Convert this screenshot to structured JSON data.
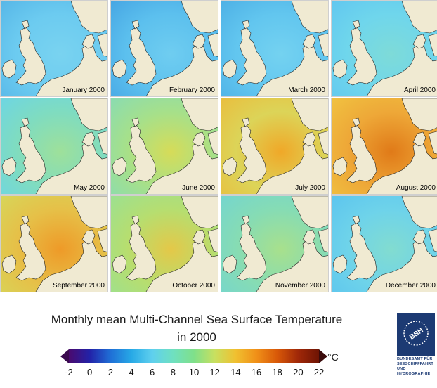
{
  "title_line1": "Monthly mean Multi-Channel Sea Surface Temperature",
  "title_line2": "in 2000",
  "unit": "°C",
  "colorbar": {
    "ticks": [
      "-2",
      "0",
      "2",
      "4",
      "6",
      "8",
      "10",
      "12",
      "14",
      "16",
      "18",
      "20",
      "22"
    ],
    "colors": [
      "#4a0a6e",
      "#2222a8",
      "#1f6fd6",
      "#27a9e6",
      "#5fd0ee",
      "#6fe0c0",
      "#7fe08a",
      "#c8e060",
      "#f0c030",
      "#f09018",
      "#d85808",
      "#a02808",
      "#6e1404"
    ]
  },
  "logo": {
    "text": "BUNDESAMT FÜR SEESCHIFFFAHRT UND HYDROGRAPHIE",
    "mark": "BSH"
  },
  "panels": [
    {
      "month": "January 2000",
      "sea": [
        "#6ccbf0",
        "#79d3f0",
        "#58b8e8"
      ]
    },
    {
      "month": "February 2000",
      "sea": [
        "#5cc0ee",
        "#6fcdf0",
        "#48a8e4"
      ]
    },
    {
      "month": "March 2000",
      "sea": [
        "#62c6ef",
        "#74d2f0",
        "#4fb2e6"
      ]
    },
    {
      "month": "April 2000",
      "sea": [
        "#6fd6ec",
        "#7edbd8",
        "#62c8ef"
      ]
    },
    {
      "month": "May 2000",
      "sea": [
        "#7fdcc0",
        "#9ee09a",
        "#6fd6e0"
      ]
    },
    {
      "month": "June 2000",
      "sea": [
        "#a6e08a",
        "#d6dc58",
        "#8cdcae"
      ]
    },
    {
      "month": "July 2000",
      "sea": [
        "#dcd458",
        "#f0a828",
        "#e8c040"
      ]
    },
    {
      "month": "August 2000",
      "sea": [
        "#eea838",
        "#e07a18",
        "#f0c040"
      ]
    },
    {
      "month": "September 2000",
      "sea": [
        "#e6c048",
        "#ee9a28",
        "#d8d458"
      ]
    },
    {
      "month": "October 2000",
      "sea": [
        "#b6de70",
        "#e4c848",
        "#9ee08e"
      ]
    },
    {
      "month": "November 2000",
      "sea": [
        "#86dcb4",
        "#a8e08c",
        "#76d6cc"
      ]
    },
    {
      "month": "December 2000",
      "sea": [
        "#6ed3ea",
        "#82dcd0",
        "#5ec6ee"
      ]
    }
  ]
}
